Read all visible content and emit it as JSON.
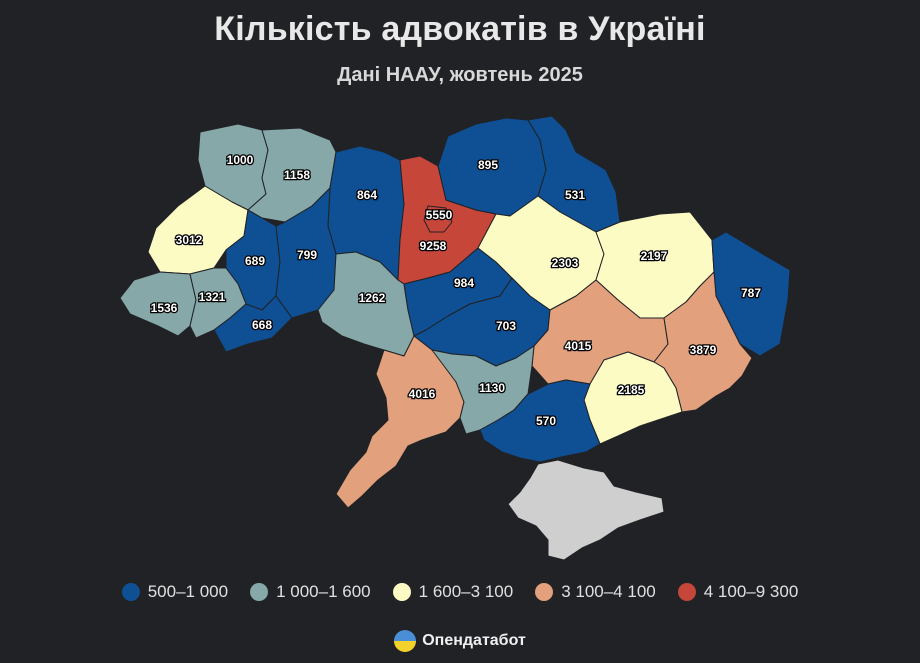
{
  "title": "Кількість адвокатів в Україні",
  "subtitle": "Дані НААУ, жовтень 2025",
  "legend": [
    {
      "label": "500–1 000",
      "color": "#0f4f93"
    },
    {
      "label": "1 000–1 600",
      "color": "#86a8a8"
    },
    {
      "label": "1 600–3 100",
      "color": "#fdfbc4"
    },
    {
      "label": "3 100–4 100",
      "color": "#e2a07c"
    },
    {
      "label": "4 100–9 300",
      "color": "#c7463a"
    }
  ],
  "colors": {
    "c1": "#0f4f93",
    "c2": "#86a8a8",
    "c3": "#fdfbc4",
    "c4": "#e2a07c",
    "c5": "#c7463a",
    "crimea": "#cfcfcf",
    "background": "#202226"
  },
  "regions": [
    {
      "id": "volyn",
      "value": "1000"
    },
    {
      "id": "rivne",
      "value": "1158"
    },
    {
      "id": "zhytomyr",
      "value": "864"
    },
    {
      "id": "kyiv_city",
      "value": "5550"
    },
    {
      "id": "kyiv_oblast",
      "value": "9258"
    },
    {
      "id": "chernihiv",
      "value": "895"
    },
    {
      "id": "sumy",
      "value": "531"
    },
    {
      "id": "lviv",
      "value": "3012"
    },
    {
      "id": "ternopil",
      "value": "689"
    },
    {
      "id": "khmelnytskyi",
      "value": "799"
    },
    {
      "id": "zakarpattia",
      "value": "1536"
    },
    {
      "id": "ivano_frankivsk",
      "value": "1321"
    },
    {
      "id": "chernivtsi",
      "value": "668"
    },
    {
      "id": "vinnytsia",
      "value": "1262"
    },
    {
      "id": "cherkasy",
      "value": "984"
    },
    {
      "id": "poltava",
      "value": "2303"
    },
    {
      "id": "kharkiv",
      "value": "2197"
    },
    {
      "id": "luhansk",
      "value": "787"
    },
    {
      "id": "kirovohrad",
      "value": "703"
    },
    {
      "id": "dnipropetrovsk",
      "value": "4015"
    },
    {
      "id": "donetsk",
      "value": "3879"
    },
    {
      "id": "odesa",
      "value": "4016"
    },
    {
      "id": "mykolaiv",
      "value": "1130"
    },
    {
      "id": "zaporizhzhia",
      "value": "2185"
    },
    {
      "id": "kherson",
      "value": "570"
    }
  ],
  "brand": {
    "name": "Опендатабот"
  }
}
